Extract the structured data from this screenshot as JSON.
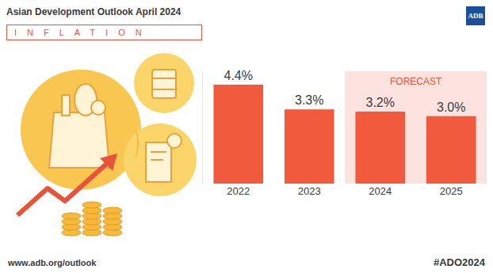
{
  "header": {
    "title": "Asian Development Outlook April 2024",
    "subtitle": "INFLATION",
    "logo": "ADB"
  },
  "chart_data": {
    "type": "bar",
    "categories": [
      "2022",
      "2023",
      "2024",
      "2025"
    ],
    "values": [
      4.4,
      3.3,
      3.2,
      3.0
    ],
    "value_labels": [
      "4.4%",
      "3.3%",
      "3.2%",
      "3.0%"
    ],
    "color": "#f15a3d",
    "data_labels": true,
    "tick_labels": "x",
    "grid": false,
    "ylim": [
      0,
      5
    ],
    "yticks": [],
    "annotations": [
      {
        "text": "FORECAST",
        "from": "2024",
        "to": "2025"
      }
    ]
  },
  "footer": {
    "url": "www.adb.org/outlook",
    "hashtag": "#ADO2024"
  }
}
